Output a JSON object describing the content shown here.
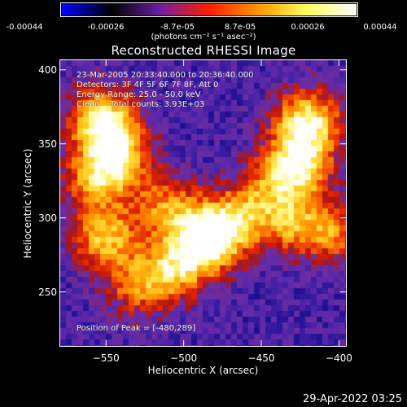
{
  "colorbar": {
    "tick_labels": [
      "-0.00044",
      "-0.00026",
      "-8.7e-05",
      "8.7e-05",
      "0.00026",
      "0.00044"
    ],
    "tick_values": [
      -0.00044,
      -0.00026,
      -8.7e-05,
      8.7e-05,
      0.00026,
      0.00044
    ],
    "unit_label": "(photons cm⁻² s⁻¹ asec⁻²)",
    "colors": [
      "#0000ff",
      "#000000",
      "#6a1fa0",
      "#ff1e00",
      "#ff9900",
      "#ffff60",
      "#ffffff"
    ]
  },
  "chart_data": {
    "type": "heatmap",
    "title": "Reconstructed RHESSI Image",
    "xlabel": "Heliocentric X (arcsec)",
    "ylabel": "Heliocentric Y (arcsec)",
    "xlim": [
      -580,
      -395
    ],
    "ylim": [
      213,
      407
    ],
    "xticks": [
      -550,
      -500,
      -450,
      -400
    ],
    "xtick_labels": [
      "−550",
      "−500",
      "−450",
      "−400"
    ],
    "yticks": [
      250,
      300,
      350,
      400
    ],
    "ytick_labels": [
      "250",
      "300",
      "350",
      "400"
    ],
    "sources": [
      {
        "x": -553,
        "y": 368,
        "peak": 0.85
      },
      {
        "x": -543,
        "y": 343,
        "peak": 0.75
      },
      {
        "x": -557,
        "y": 326,
        "peak": 0.55
      },
      {
        "x": -551,
        "y": 287,
        "peak": 0.7
      },
      {
        "x": -512,
        "y": 308,
        "peak": 0.55
      },
      {
        "x": -485,
        "y": 286,
        "peak": 0.95
      },
      {
        "x": -505,
        "y": 266,
        "peak": 0.65
      },
      {
        "x": -470,
        "y": 296,
        "peak": 0.5
      },
      {
        "x": -530,
        "y": 254,
        "peak": 0.5
      },
      {
        "x": -420,
        "y": 365,
        "peak": 0.9
      },
      {
        "x": -427,
        "y": 335,
        "peak": 0.9
      },
      {
        "x": -430,
        "y": 296,
        "peak": 0.55
      },
      {
        "x": -402,
        "y": 290,
        "peak": 0.5
      },
      {
        "x": -450,
        "y": 315,
        "peak": 0.4
      }
    ],
    "peak_position": [
      -480,
      289
    ]
  },
  "annotations": {
    "time_range": "23-Mar-2005 20:33:40.000 to 20:36:40.000",
    "detectors": "Detectors: 3F 4F 5F 6F 7F 8F, Att 0",
    "energy_range": "Energy Range: 25.0 - 50.0 keV",
    "method_counts": "Clean    Total counts: 3.93E+03",
    "peak_position": "Position of Peak = [-480,289]"
  },
  "footer": {
    "date": "29-Apr-2022 03:25"
  }
}
